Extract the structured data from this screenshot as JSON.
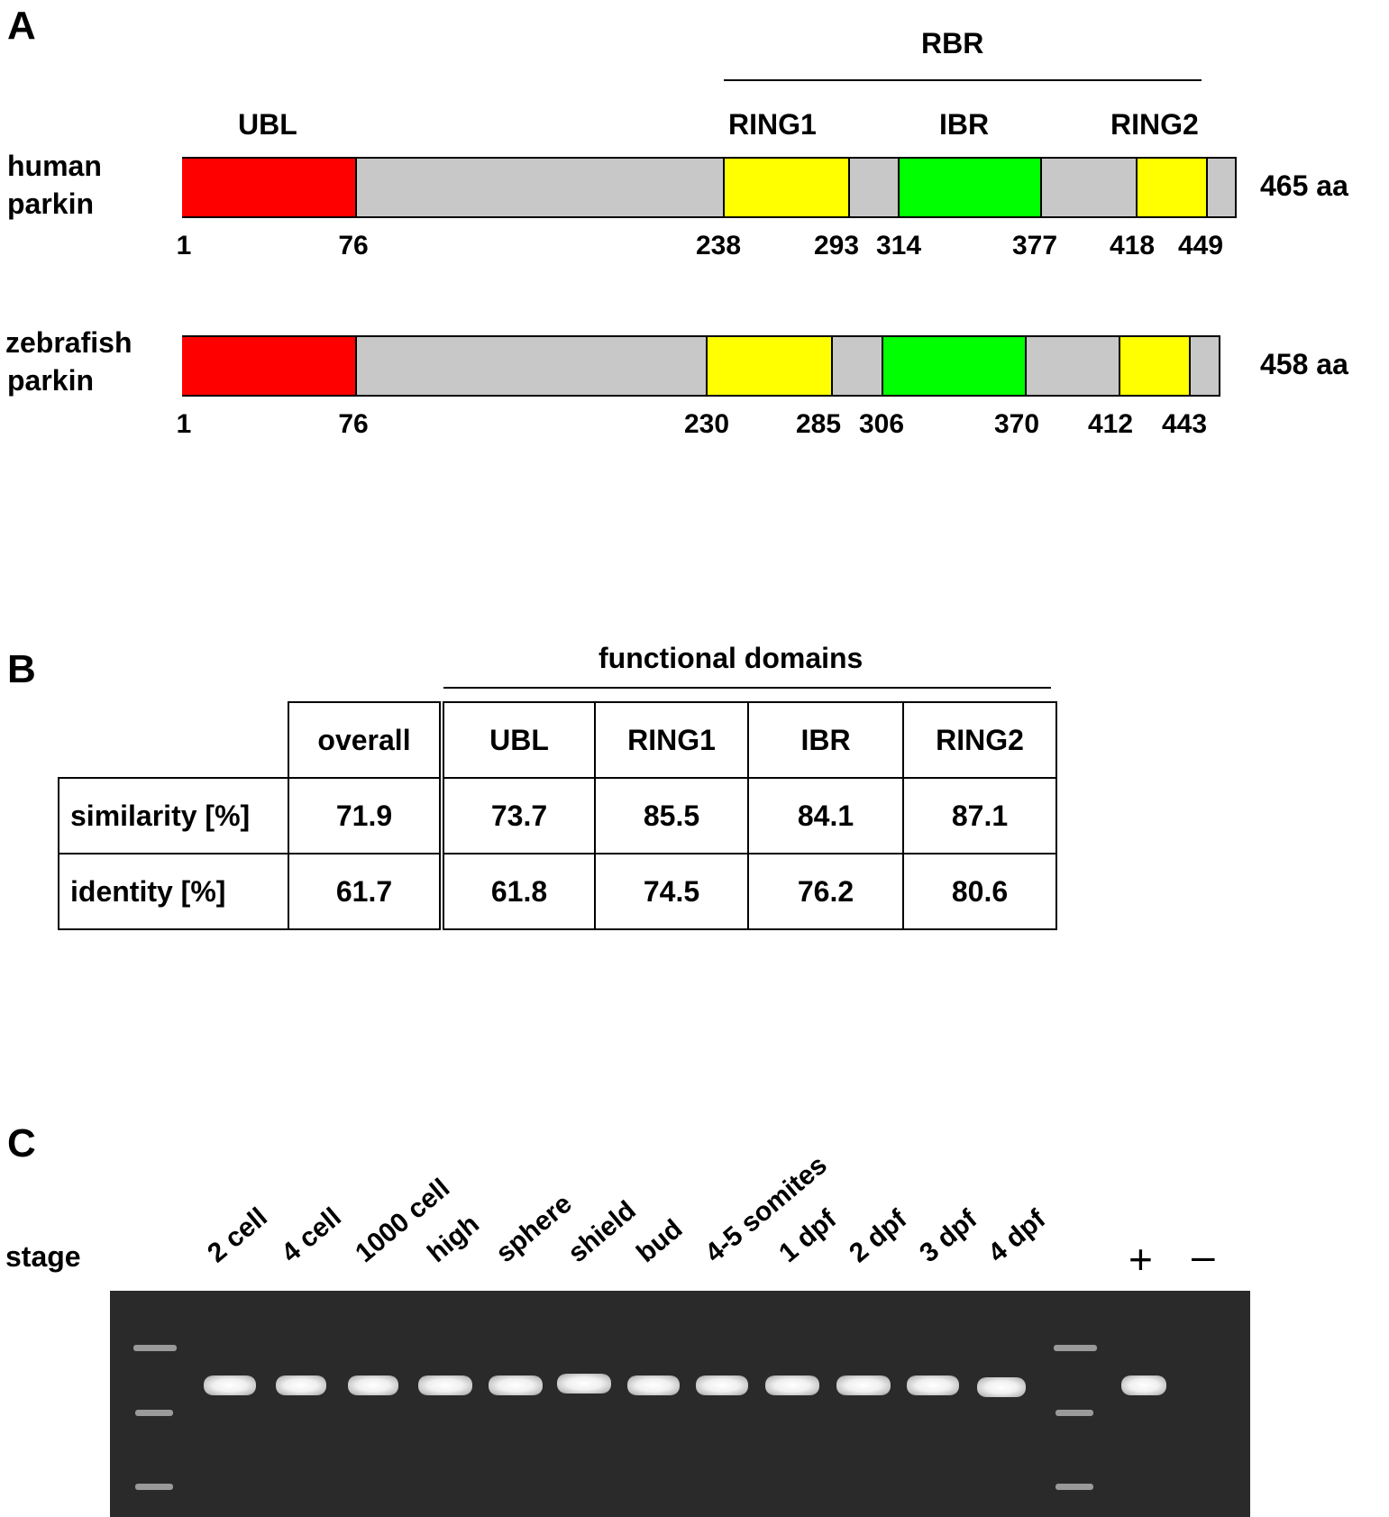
{
  "panelA": {
    "letter": "A",
    "rbr_label": "RBR",
    "domain_labels": {
      "ubl": "UBL",
      "ring1": "RING1",
      "ibr": "IBR",
      "ring2": "RING2"
    },
    "human": {
      "name_line1": "human",
      "name_line2": "parkin",
      "length_label": "465 aa",
      "positions": [
        "1",
        "76",
        "238",
        "293",
        "314",
        "377",
        "418",
        "449"
      ]
    },
    "zebrafish": {
      "name_line1": "zebrafish",
      "name_line2": "parkin",
      "length_label": "458 aa",
      "positions": [
        "1",
        "76",
        "230",
        "285",
        "306",
        "370",
        "412",
        "443"
      ]
    },
    "colors": {
      "ubl": "#ff0000",
      "ring": "#ffff00",
      "ibr": "#00ff00",
      "linker": "#c8c8c8"
    }
  },
  "panelB": {
    "letter": "B",
    "group_header": "functional domains",
    "columns": [
      "overall",
      "UBL",
      "RING1",
      "IBR",
      "RING2"
    ],
    "rows": [
      {
        "label": "similarity [%]",
        "values": [
          "71.9",
          "73.7",
          "85.5",
          "84.1",
          "87.1"
        ]
      },
      {
        "label": "identity [%]",
        "values": [
          "61.7",
          "61.8",
          "74.5",
          "76.2",
          "80.6"
        ]
      }
    ]
  },
  "panelC": {
    "letter": "C",
    "stage_label": "stage",
    "lanes": [
      "2 cell",
      "4 cell",
      "1000 cell",
      "high",
      "sphere",
      "shield",
      "bud",
      "4-5 somites",
      "1 dpf",
      "2 dpf",
      "3 dpf",
      "4 dpf"
    ],
    "plus_label": "+",
    "minus_label": "–"
  }
}
